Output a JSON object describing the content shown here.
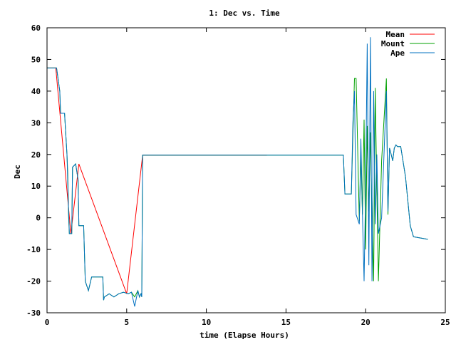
{
  "chart_data": {
    "type": "line",
    "title": "1: Dec vs. Time",
    "xlabel": "time (Elapse Hours)",
    "ylabel": "Dec",
    "xlim": [
      0,
      25
    ],
    "ylim": [
      -30,
      60
    ],
    "xticks": [
      "0",
      "5",
      "10",
      "15",
      "20",
      "25"
    ],
    "yticks": [
      "-30",
      "-20",
      "-10",
      "0",
      "10",
      "20",
      "30",
      "40",
      "50",
      "60"
    ],
    "grid": false,
    "legend_position": "top-right",
    "series": [
      {
        "name": "Mean",
        "color": "#ff0000",
        "x": [
          0.0,
          0.55,
          1.5,
          2.0,
          5.0,
          6.0,
          13.8
        ],
        "y": [
          47.3,
          47.3,
          -5.0,
          17.0,
          -24.0,
          19.8,
          19.8
        ]
      },
      {
        "name": "Mount",
        "color": "#00a000",
        "x": [
          0.0,
          0.6,
          0.8,
          0.85,
          1.1,
          1.25,
          1.3,
          1.35,
          1.4,
          1.55,
          1.6,
          1.8,
          1.95,
          2.0,
          2.3,
          2.4,
          2.6,
          2.8,
          3.5,
          3.55,
          3.6,
          3.9,
          4.2,
          4.5,
          4.8,
          5.1,
          5.3,
          5.5,
          5.7,
          5.8,
          5.9,
          5.95,
          6.0,
          13.8,
          18.6,
          18.7,
          19.1,
          19.2,
          19.3,
          19.4,
          19.6,
          19.7,
          19.8,
          19.9,
          20.0,
          20.1,
          20.2,
          20.3,
          20.4,
          20.5,
          20.6,
          20.7,
          20.8,
          21.0,
          21.3,
          21.4,
          21.5,
          21.6,
          21.7,
          21.8,
          21.9,
          22.0,
          22.2,
          22.5,
          22.8,
          23.0,
          23.9
        ],
        "y": [
          47.3,
          47.3,
          40.0,
          33.0,
          33.0,
          20.0,
          14.0,
          1.0,
          -5.0,
          -5.0,
          16.0,
          17.0,
          12.0,
          -2.5,
          -2.5,
          -20.0,
          -23.0,
          -18.7,
          -18.7,
          -26.0,
          -25.0,
          -24.0,
          -25.0,
          -24.0,
          -23.5,
          -24.0,
          -23.5,
          -25.0,
          -23.0,
          -25.0,
          -24.0,
          -25.0,
          19.8,
          19.8,
          19.8,
          7.5,
          7.5,
          26.0,
          44.0,
          44.0,
          -1.0,
          20.0,
          1.0,
          31.0,
          -10.0,
          29.0,
          2.0,
          27.0,
          -1.0,
          -20.0,
          41.0,
          9.0,
          -20.0,
          18.0,
          44.0,
          1.0,
          22.0,
          20.0,
          18.0,
          22.0,
          23.0,
          22.5,
          22.5,
          13.0,
          -2.5,
          -6.0,
          -6.8
        ]
      },
      {
        "name": "Ape",
        "color": "#0070c0",
        "x": [
          0.0,
          0.6,
          0.8,
          0.85,
          1.1,
          1.25,
          1.3,
          1.35,
          1.4,
          1.55,
          1.6,
          1.8,
          1.95,
          2.0,
          2.3,
          2.4,
          2.6,
          2.8,
          3.5,
          3.55,
          3.6,
          3.9,
          4.2,
          4.5,
          4.8,
          5.1,
          5.3,
          5.5,
          5.7,
          5.8,
          5.9,
          5.95,
          6.0,
          13.8,
          18.6,
          18.7,
          19.1,
          19.2,
          19.3,
          19.4,
          19.6,
          19.7,
          19.8,
          19.9,
          20.0,
          20.1,
          20.2,
          20.3,
          20.4,
          20.5,
          20.6,
          20.7,
          20.8,
          21.0,
          21.3,
          21.4,
          21.5,
          21.6,
          21.7,
          21.8,
          21.9,
          22.0,
          22.2,
          22.5,
          22.8,
          23.0,
          23.9
        ],
        "y": [
          47.3,
          47.3,
          40.0,
          33.0,
          33.0,
          20.0,
          11.0,
          3.0,
          -5.0,
          -5.0,
          16.0,
          17.0,
          12.0,
          -2.5,
          -2.5,
          -20.0,
          -23.0,
          -18.7,
          -18.7,
          -26.0,
          -25.0,
          -24.0,
          -25.0,
          -24.0,
          -23.5,
          -24.0,
          -23.5,
          -28.0,
          -23.0,
          -25.0,
          -24.0,
          -25.0,
          19.8,
          19.8,
          19.8,
          7.5,
          7.5,
          30.0,
          40.0,
          1.0,
          -2.0,
          25.0,
          1.0,
          -20.0,
          10.0,
          55.0,
          -15.0,
          57.0,
          -20.0,
          40.0,
          -2.0,
          20.0,
          -5.0,
          0.0,
          40.0,
          2.0,
          22.0,
          20.0,
          18.0,
          22.0,
          23.0,
          22.5,
          22.5,
          13.0,
          -2.5,
          -6.0,
          -6.8
        ]
      }
    ]
  }
}
